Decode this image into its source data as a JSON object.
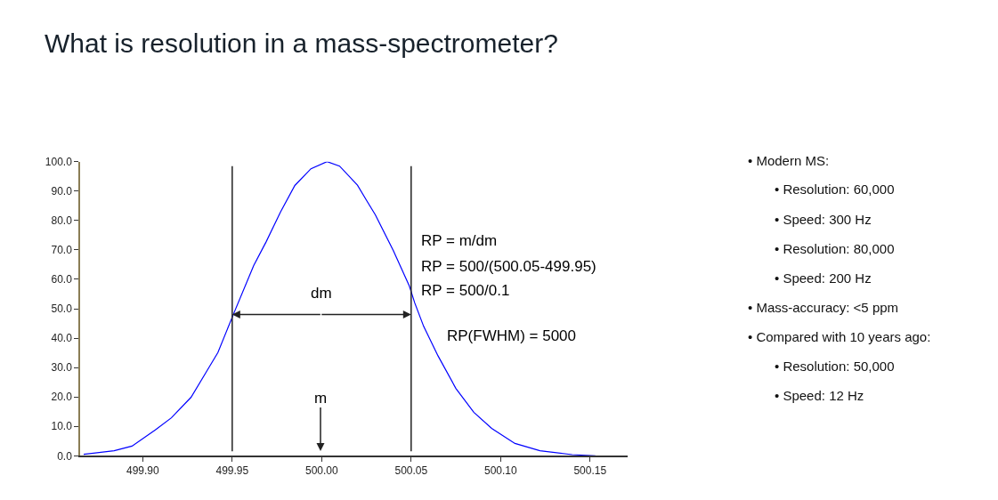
{
  "chart_data": {
    "type": "line",
    "title": "What is resolution in a mass-spectrometer?",
    "x": [
      499.867,
      499.884,
      499.894,
      499.907,
      499.916,
      499.927,
      499.935,
      499.942,
      499.951,
      499.962,
      499.969,
      499.977,
      499.985,
      499.994,
      500.003,
      500.01,
      500.02,
      500.025,
      500.03,
      500.04,
      500.049,
      500.052,
      500.057,
      500.065,
      500.075,
      500.085,
      500.095,
      500.108,
      500.122,
      500.14,
      500.153
    ],
    "series": [
      {
        "color": "#0000ff",
        "values": [
          0.5,
          1.7,
          3.3,
          8.8,
          12.9,
          19.9,
          28.0,
          35.1,
          48.6,
          64.7,
          72.8,
          82.9,
          91.9,
          97.6,
          100.0,
          98.5,
          92.0,
          86.9,
          81.9,
          69.8,
          57.7,
          52.0,
          44.0,
          34.0,
          22.9,
          14.8,
          9.3,
          4.2,
          1.7,
          0.4,
          0.0
        ]
      }
    ],
    "xlim": [
      499.865,
      500.171
    ],
    "xticks": [
      {
        "value": 499.9,
        "label": "499.90"
      },
      {
        "value": 499.95,
        "label": "499.95"
      },
      {
        "value": 500.0,
        "label": "500.00"
      },
      {
        "value": 500.05,
        "label": "500.05"
      },
      {
        "value": 500.1,
        "label": "500.10"
      },
      {
        "value": 500.15,
        "label": "500.15"
      }
    ],
    "ylim": [
      0,
      100
    ],
    "yticks": [
      {
        "value": 0,
        "label": "0.0"
      },
      {
        "value": 10,
        "label": "10.0"
      },
      {
        "value": 20,
        "label": "20.0"
      },
      {
        "value": 30,
        "label": "30.0"
      },
      {
        "value": 40,
        "label": "40.0"
      },
      {
        "value": 50,
        "label": "50.0"
      },
      {
        "value": 60,
        "label": "60.0"
      },
      {
        "value": 70,
        "label": "70.0"
      },
      {
        "value": 80,
        "label": "80.0"
      },
      {
        "value": 90,
        "label": "90.0"
      },
      {
        "value": 100,
        "label": "100.0"
      }
    ],
    "ref_lines": [
      {
        "axis": "x",
        "value": 499.95,
        "color": "#222222"
      },
      {
        "axis": "x",
        "value": 500.05,
        "color": "#222222"
      }
    ],
    "annotations": [
      {
        "text": "dm",
        "x": 500.05,
        "y": 48
      },
      "m",
      "RP = m/dm",
      "RP = 500/(500.05-499.95)",
      "RP = 500/0.1",
      "RP(FWHM) = 5000",
      "• Modern MS:",
      "\t• Resolution: 60,000",
      "\t• Speed: 300 Hz",
      "\t• Resolution: 80,000",
      "\t• Speed: 200 Hz",
      "• Mass-accuracy: <5 ppm",
      "• Compared with 10 years ago:",
      "\t• Resolution: 50,000",
      "\t• Speed: 12 Hz"
    ]
  }
}
